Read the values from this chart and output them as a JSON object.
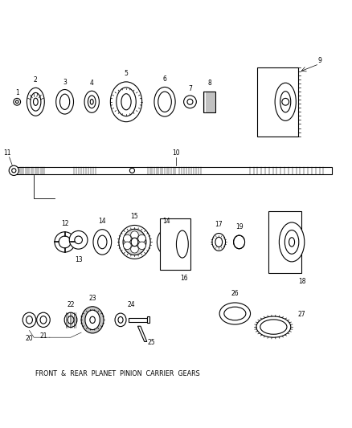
{
  "title": "FRONT  &  REAR  PLANET  PINION  CARRIER  GEARS",
  "bg_color": "#ffffff",
  "line_color": "#000000",
  "fig_width": 4.38,
  "fig_height": 5.33,
  "dpi": 100
}
